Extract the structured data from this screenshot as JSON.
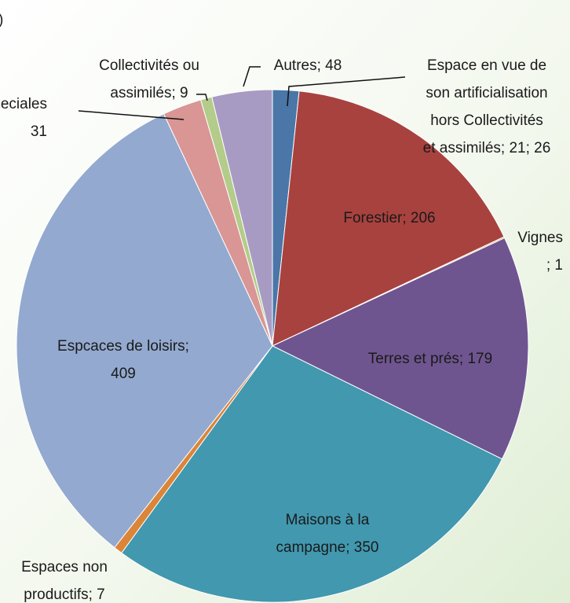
{
  "chart_data": {
    "type": "pie",
    "title": ")",
    "labels": [
      [
        "Espace en vue de",
        "son artificialisation",
        "hors Collectivités",
        "et assimilés; 21; 26"
      ],
      [
        "Forestier; 206"
      ],
      [
        "Vignes",
        "; 1"
      ],
      [
        "Terres et prés; 179"
      ],
      [
        "Maisons à la",
        "campagne; 350"
      ],
      [
        "Espaces non",
        "productifs; 7"
      ],
      [
        "Espcaces de loisirs;",
        "409"
      ],
      [
        "eciales",
        "31"
      ],
      [
        "Collectivités ou",
        "assimilés; 9"
      ],
      [
        "Autres; 48"
      ]
    ],
    "values": [
      21,
      206,
      1,
      179,
      350,
      7,
      409,
      31,
      9,
      48
    ],
    "colors": [
      "#4a76a8",
      "#a8423f",
      "#c9a650",
      "#6f5590",
      "#4198af",
      "#db8538",
      "#93a9cf",
      "#d99694",
      "#b3cc8a",
      "#a89bc3"
    ]
  }
}
